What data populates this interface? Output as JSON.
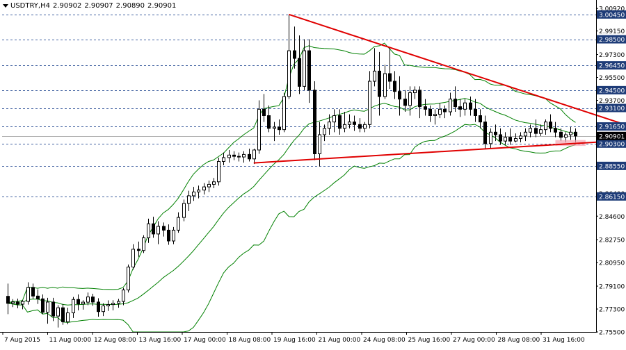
{
  "header": {
    "symbol": "USDTRY,H4",
    "open": "2.90902",
    "high": "2.90907",
    "low": "2.90890",
    "close": "2.90901"
  },
  "colors": {
    "background": "#ffffff",
    "candle": "#000000",
    "bollinger": "#008000",
    "trendline": "#e00000",
    "level_line": "#4060a0",
    "level_label_bg": "#1e3c78",
    "price_label_bg": "#000000"
  },
  "chart_data": {
    "type": "candlestick",
    "title": "",
    "price_axis_ticks": [
      "3.00920",
      "2.99150",
      "2.97300",
      "2.95500",
      "2.93700",
      "2.91650",
      "2.88550",
      "2.86400",
      "2.84600",
      "2.82750",
      "2.80950",
      "2.79100",
      "2.77300",
      "2.75500"
    ],
    "time_axis_labels": [
      "7 Aug 2015",
      "11 Aug 00:00",
      "12 Aug 08:00",
      "13 Aug 16:00",
      "17 Aug 00:00",
      "18 Aug 08:00",
      "19 Aug 16:00",
      "21 Aug 00:00",
      "24 Aug 08:00",
      "25 Aug 16:00",
      "27 Aug 00:00",
      "28 Aug 08:00",
      "31 Aug 16:00"
    ],
    "ylim": [
      2.755,
      3.0115
    ],
    "horizontal_levels": [
      "3.00450",
      "2.98500",
      "2.96450",
      "2.94500",
      "2.93100",
      "2.91650",
      "2.90300",
      "2.88550",
      "2.86150"
    ],
    "current_price": "2.90901",
    "grid": false,
    "indicators": [
      "Bollinger Bands (upper, middle, lower)"
    ],
    "trendlines": [
      {
        "name": "resistance",
        "from": [
          56,
          3.0045
        ],
        "to": [
          124,
          2.9165
        ]
      },
      {
        "name": "support",
        "from": [
          49,
          2.8878
        ],
        "to": [
          124,
          2.9058
        ]
      }
    ],
    "highlight": {
      "index_from": 109,
      "index_to": 115,
      "price_low": 2.9012,
      "price_high": 2.9058
    },
    "candles": [
      [
        2.783,
        2.793,
        2.769,
        2.7775
      ],
      [
        2.7775,
        2.7808,
        2.7745,
        2.7785
      ],
      [
        2.7785,
        2.7812,
        2.7736,
        2.7768
      ],
      [
        2.7768,
        2.78,
        2.7728,
        2.779
      ],
      [
        2.779,
        2.794,
        2.7765,
        2.79
      ],
      [
        2.79,
        2.793,
        2.781,
        2.7832
      ],
      [
        2.7832,
        2.7885,
        2.777,
        2.781
      ],
      [
        2.781,
        2.7845,
        2.769,
        2.7705
      ],
      [
        2.7705,
        2.7818,
        2.7615,
        2.7785
      ],
      [
        2.7785,
        2.7818,
        2.7635,
        2.7675
      ],
      [
        2.7675,
        2.776,
        2.7585,
        2.774
      ],
      [
        2.774,
        2.777,
        2.7606,
        2.763
      ],
      [
        2.763,
        2.774,
        2.761,
        2.77
      ],
      [
        2.77,
        2.7825,
        2.766,
        2.7805
      ],
      [
        2.7805,
        2.7845,
        2.772,
        2.777
      ],
      [
        2.777,
        2.78,
        2.7725,
        2.7784
      ],
      [
        2.7784,
        2.786,
        2.776,
        2.7825
      ],
      [
        2.7825,
        2.785,
        2.7755,
        2.7785
      ],
      [
        2.7785,
        2.7815,
        2.767,
        2.771
      ],
      [
        2.771,
        2.7775,
        2.7675,
        2.7755
      ],
      [
        2.7755,
        2.7798,
        2.7715,
        2.7765
      ],
      [
        2.7765,
        2.78,
        2.772,
        2.7775
      ],
      [
        2.7775,
        2.781,
        2.774,
        2.779
      ],
      [
        2.779,
        2.7895,
        2.776,
        2.788
      ],
      [
        2.788,
        2.808,
        2.786,
        2.806
      ],
      [
        2.806,
        2.824,
        2.804,
        2.82
      ],
      [
        2.82,
        2.826,
        2.814,
        2.819
      ],
      [
        2.819,
        2.831,
        2.817,
        2.829
      ],
      [
        2.829,
        2.844,
        2.825,
        2.84
      ],
      [
        2.84,
        2.8455,
        2.829,
        2.832
      ],
      [
        2.832,
        2.842,
        2.824,
        2.838
      ],
      [
        2.838,
        2.841,
        2.83,
        2.835
      ],
      [
        2.835,
        2.8395,
        2.8235,
        2.8265
      ],
      [
        2.8265,
        2.8375,
        2.824,
        2.835
      ],
      [
        2.835,
        2.849,
        2.833,
        2.845
      ],
      [
        2.845,
        2.859,
        2.842,
        2.856
      ],
      [
        2.856,
        2.866,
        2.85,
        2.862
      ],
      [
        2.862,
        2.869,
        2.858,
        2.865
      ],
      [
        2.865,
        2.87,
        2.86,
        2.8665
      ],
      [
        2.8665,
        2.872,
        2.863,
        2.869
      ],
      [
        2.869,
        2.874,
        2.865,
        2.871
      ],
      [
        2.871,
        2.876,
        2.868,
        2.873
      ],
      [
        2.873,
        2.892,
        2.87,
        2.889
      ],
      [
        2.889,
        2.896,
        2.886,
        2.892
      ],
      [
        2.892,
        2.898,
        2.888,
        2.894
      ],
      [
        2.894,
        2.897,
        2.89,
        2.893
      ],
      [
        2.893,
        2.896,
        2.889,
        2.8925
      ],
      [
        2.8925,
        2.897,
        2.888,
        2.8945
      ],
      [
        2.8945,
        2.899,
        2.889,
        2.891
      ],
      [
        2.891,
        2.899,
        2.887,
        2.898
      ],
      [
        2.898,
        2.937,
        2.895,
        2.93
      ],
      [
        2.93,
        2.942,
        2.92,
        2.925
      ],
      [
        2.925,
        2.933,
        2.912,
        2.915
      ],
      [
        2.915,
        2.92,
        2.905,
        2.916
      ],
      [
        2.916,
        2.922,
        2.91,
        2.914
      ],
      [
        2.914,
        2.943,
        2.912,
        2.94
      ],
      [
        2.94,
        3.0045,
        2.938,
        2.976
      ],
      [
        2.976,
        2.995,
        2.962,
        2.97
      ],
      [
        2.97,
        2.988,
        2.942,
        2.948
      ],
      [
        2.948,
        2.985,
        2.945,
        2.976
      ],
      [
        2.976,
        2.985,
        2.935,
        2.945
      ],
      [
        2.945,
        2.952,
        2.89,
        2.895
      ],
      [
        2.895,
        2.92,
        2.885,
        2.91
      ],
      [
        2.91,
        2.918,
        2.905,
        2.915
      ],
      [
        2.915,
        2.926,
        2.91,
        2.92
      ],
      [
        2.92,
        2.93,
        2.912,
        2.925
      ],
      [
        2.925,
        2.93,
        2.91,
        2.915
      ],
      [
        2.915,
        2.928,
        2.912,
        2.918
      ],
      [
        2.918,
        2.926,
        2.915,
        2.92
      ],
      [
        2.92,
        2.925,
        2.913,
        2.918
      ],
      [
        2.918,
        2.923,
        2.912,
        2.915
      ],
      [
        2.915,
        2.92,
        2.912,
        2.918
      ],
      [
        2.918,
        2.96,
        2.915,
        2.952
      ],
      [
        2.952,
        2.978,
        2.948,
        2.96
      ],
      [
        2.96,
        2.975,
        2.925,
        2.94
      ],
      [
        2.94,
        2.965,
        2.938,
        2.958
      ],
      [
        2.958,
        2.978,
        2.946,
        2.952
      ],
      [
        2.952,
        2.96,
        2.938,
        2.944
      ],
      [
        2.944,
        2.956,
        2.925,
        2.938
      ],
      [
        2.938,
        2.945,
        2.928,
        2.933
      ],
      [
        2.933,
        2.948,
        2.925,
        2.943
      ],
      [
        2.943,
        2.948,
        2.938,
        2.945
      ],
      [
        2.945,
        2.948,
        2.923,
        2.932
      ],
      [
        2.932,
        2.938,
        2.925,
        2.93
      ],
      [
        2.93,
        2.933,
        2.92,
        2.925
      ],
      [
        2.925,
        2.93,
        2.918,
        2.926
      ],
      [
        2.926,
        2.935,
        2.923,
        2.93
      ],
      [
        2.93,
        2.933,
        2.923,
        2.928
      ],
      [
        2.928,
        2.943,
        2.925,
        2.938
      ],
      [
        2.938,
        2.948,
        2.928,
        2.932
      ],
      [
        2.932,
        2.938,
        2.924,
        2.93
      ],
      [
        2.93,
        2.938,
        2.925,
        2.935
      ],
      [
        2.935,
        2.94,
        2.925,
        2.93
      ],
      [
        2.93,
        2.938,
        2.92,
        2.925
      ],
      [
        2.925,
        2.93,
        2.915,
        2.92
      ],
      [
        2.92,
        2.925,
        2.899,
        2.903
      ],
      [
        2.903,
        2.915,
        2.899,
        2.912
      ],
      [
        2.912,
        2.918,
        2.905,
        2.91
      ],
      [
        2.91,
        2.915,
        2.902,
        2.905
      ],
      [
        2.905,
        2.912,
        2.902,
        2.908
      ],
      [
        2.908,
        2.915,
        2.902,
        2.905
      ],
      [
        2.905,
        2.911,
        2.904,
        2.907
      ],
      [
        2.907,
        2.912,
        2.904,
        2.909
      ],
      [
        2.909,
        2.915,
        2.905,
        2.912
      ],
      [
        2.912,
        2.918,
        2.908,
        2.915
      ],
      [
        2.915,
        2.922,
        2.908,
        2.911
      ],
      [
        2.911,
        2.918,
        2.909,
        2.914
      ],
      [
        2.914,
        2.922,
        2.91,
        2.92
      ],
      [
        2.92,
        2.926,
        2.912,
        2.915
      ],
      [
        2.915,
        2.92,
        2.908,
        2.912
      ],
      [
        2.912,
        2.915,
        2.905,
        2.908
      ],
      [
        2.908,
        2.912,
        2.904,
        2.91
      ],
      [
        2.91,
        2.916,
        2.906,
        2.912
      ],
      [
        2.912,
        2.915,
        2.904,
        2.909
      ]
    ]
  }
}
